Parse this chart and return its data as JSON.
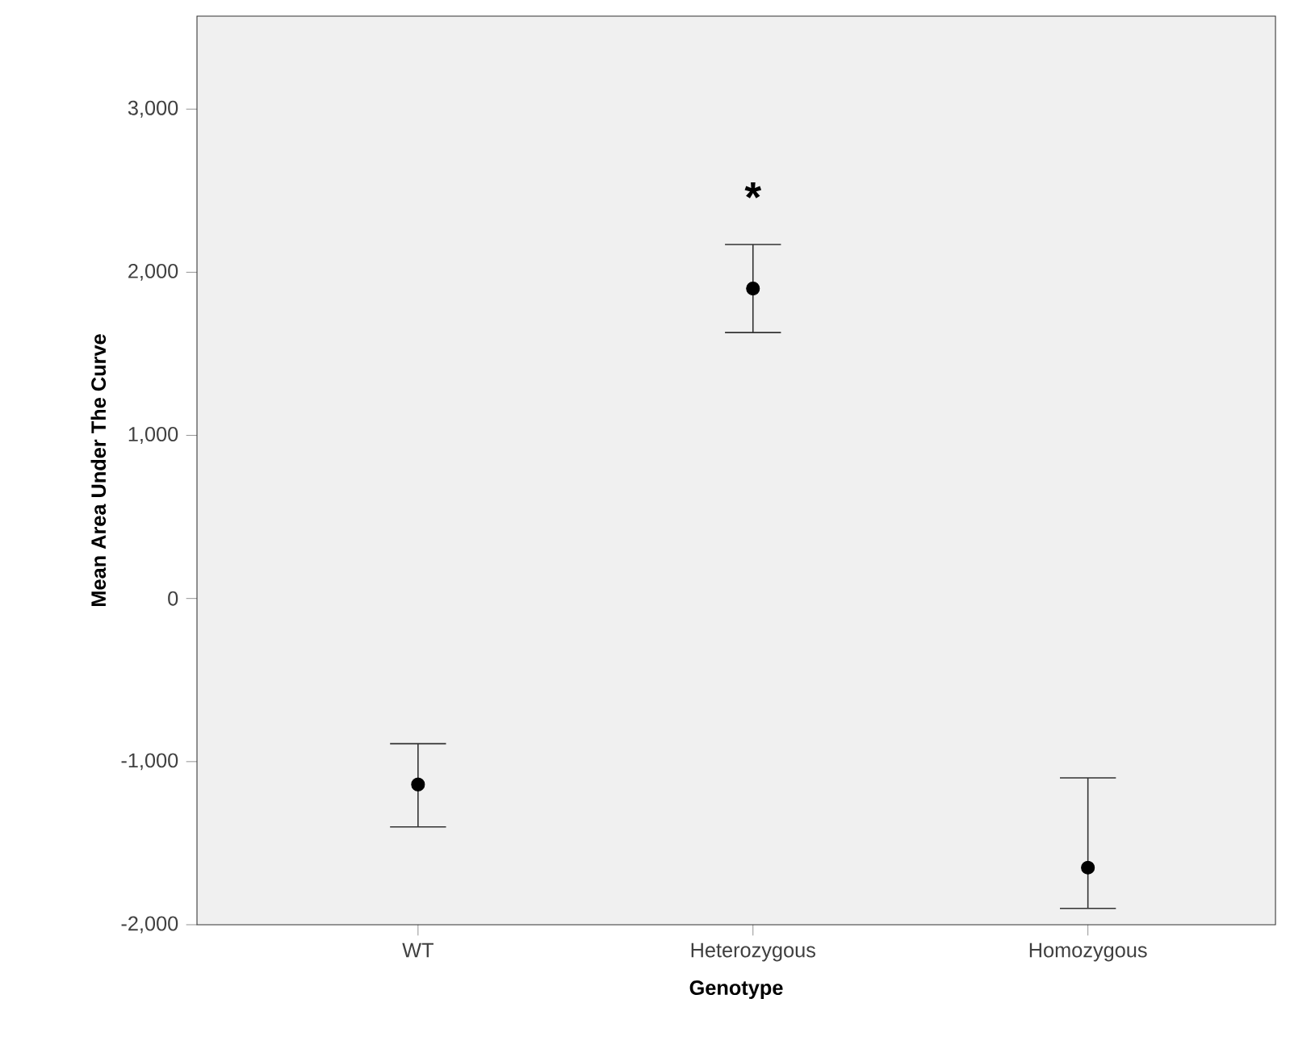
{
  "chart_data": {
    "type": "scatter",
    "xlabel": "Genotype",
    "ylabel": "Mean Area Under The Curve",
    "categories": [
      "WT",
      "Heterozygous",
      "Homozygous"
    ],
    "values": [
      -1140,
      1900,
      -1650
    ],
    "errors": [
      [
        -1400,
        -890
      ],
      [
        1630,
        2170
      ],
      [
        -1900,
        -1100
      ]
    ],
    "color": "#000000",
    "marker": "circle",
    "grid": false,
    "ylim": [
      -2000,
      3570
    ],
    "yticks": [
      {
        "value": -2000,
        "label": "-2,000"
      },
      {
        "value": -1000,
        "label": "-1,000"
      },
      0,
      {
        "value": 1000,
        "label": "1,000"
      },
      {
        "value": 2000,
        "label": "2,000"
      },
      {
        "value": 3000,
        "label": "3,000"
      }
    ],
    "annotations": [
      "*"
    ]
  }
}
